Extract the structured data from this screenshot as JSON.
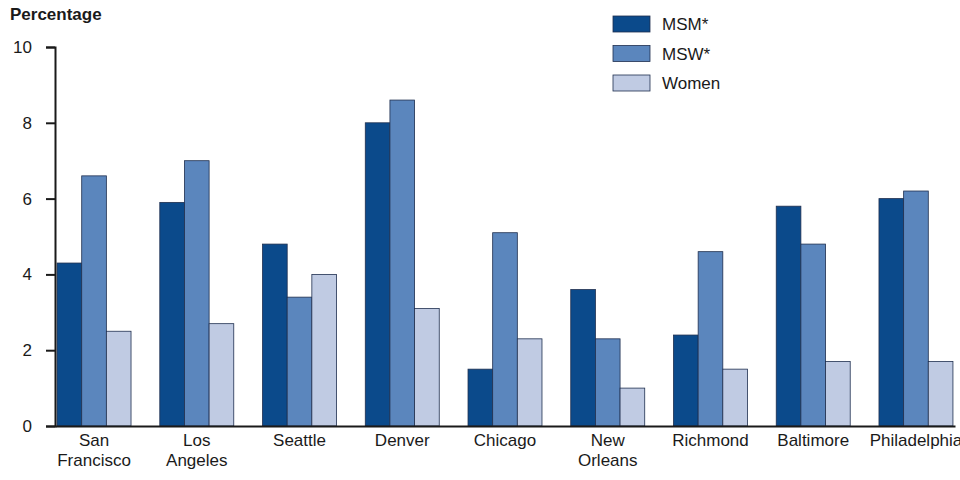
{
  "chart_data": {
    "type": "bar",
    "y_label": "Percentage",
    "categories": [
      "San Francisco",
      "Los Angeles",
      "Seattle",
      "Denver",
      "Chicago",
      "New Orleans",
      "Richmond",
      "Baltimore",
      "Philadelphia"
    ],
    "series": [
      {
        "name": "MSM*",
        "color": "#0b4a8b",
        "values": [
          4.3,
          5.9,
          4.8,
          8.0,
          1.5,
          3.6,
          2.4,
          5.8,
          6.0
        ]
      },
      {
        "name": "MSW*",
        "color": "#5b86bd",
        "values": [
          6.6,
          7.0,
          3.4,
          8.6,
          5.1,
          2.3,
          4.6,
          4.8,
          6.2
        ]
      },
      {
        "name": "Women",
        "color": "#c0cbe3",
        "values": [
          2.5,
          2.7,
          4.0,
          3.1,
          2.3,
          1.0,
          1.5,
          1.7,
          1.7
        ]
      }
    ],
    "ylim": [
      0,
      10
    ],
    "yticks": [
      0,
      2,
      4,
      6,
      8,
      10
    ],
    "grid": false,
    "legend": "top-right"
  }
}
